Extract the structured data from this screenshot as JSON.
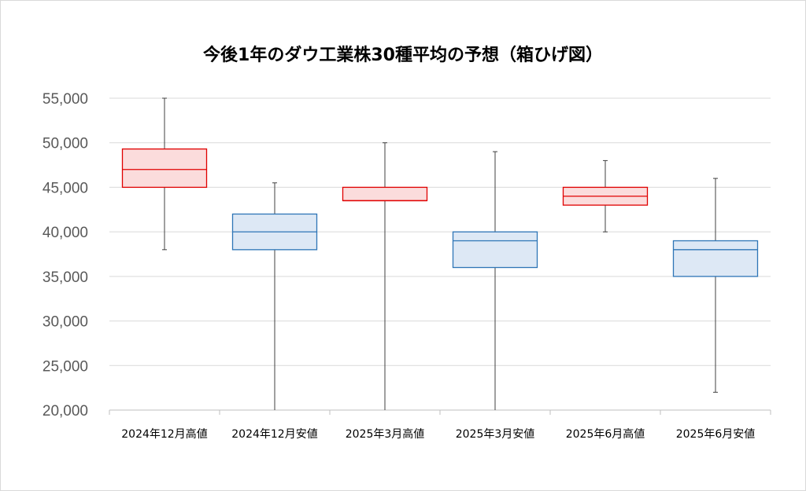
{
  "chart_data": {
    "type": "boxplot",
    "title": "今後1年のダウ工業株30種平均の予想（箱ひげ図）",
    "xlabel": "",
    "ylabel": "",
    "ylim": [
      20000,
      55000
    ],
    "y_tick_step": 5000,
    "y_tick_labels": [
      "20,000",
      "25,000",
      "30,000",
      "35,000",
      "40,000",
      "45,000",
      "50,000",
      "55,000"
    ],
    "grid": true,
    "legend": "none",
    "colors": {
      "high_stroke": "#e00000",
      "high_fill": "#fbdcdc",
      "low_stroke": "#2e75b6",
      "low_fill": "#dde8f5",
      "whisker": "#404040",
      "grid": "#d9d9d9",
      "axis": "#bfbfbf"
    },
    "categories": [
      "2024年12月高値",
      "2024年12月安値",
      "2025年3月高値",
      "2025年3月安値",
      "2025年6月高値",
      "2025年6月安値"
    ],
    "boxes": [
      {
        "kind": "high",
        "min": 38000,
        "q1": 45000,
        "median": 47000,
        "q3": 49300,
        "max": 55000
      },
      {
        "kind": "low",
        "min": 20000,
        "q1": 38000,
        "median": 40000,
        "q3": 42000,
        "max": 45500
      },
      {
        "kind": "high",
        "min": 20000,
        "q1": 43500,
        "median": 43500,
        "q3": 45000,
        "max": 50000
      },
      {
        "kind": "low",
        "min": 20000,
        "q1": 36000,
        "median": 39000,
        "q3": 40000,
        "max": 49000
      },
      {
        "kind": "high",
        "min": 40000,
        "q1": 43000,
        "median": 44000,
        "q3": 45000,
        "max": 48000
      },
      {
        "kind": "low",
        "min": 22000,
        "q1": 35000,
        "median": 38000,
        "q3": 39000,
        "max": 46000
      }
    ]
  }
}
